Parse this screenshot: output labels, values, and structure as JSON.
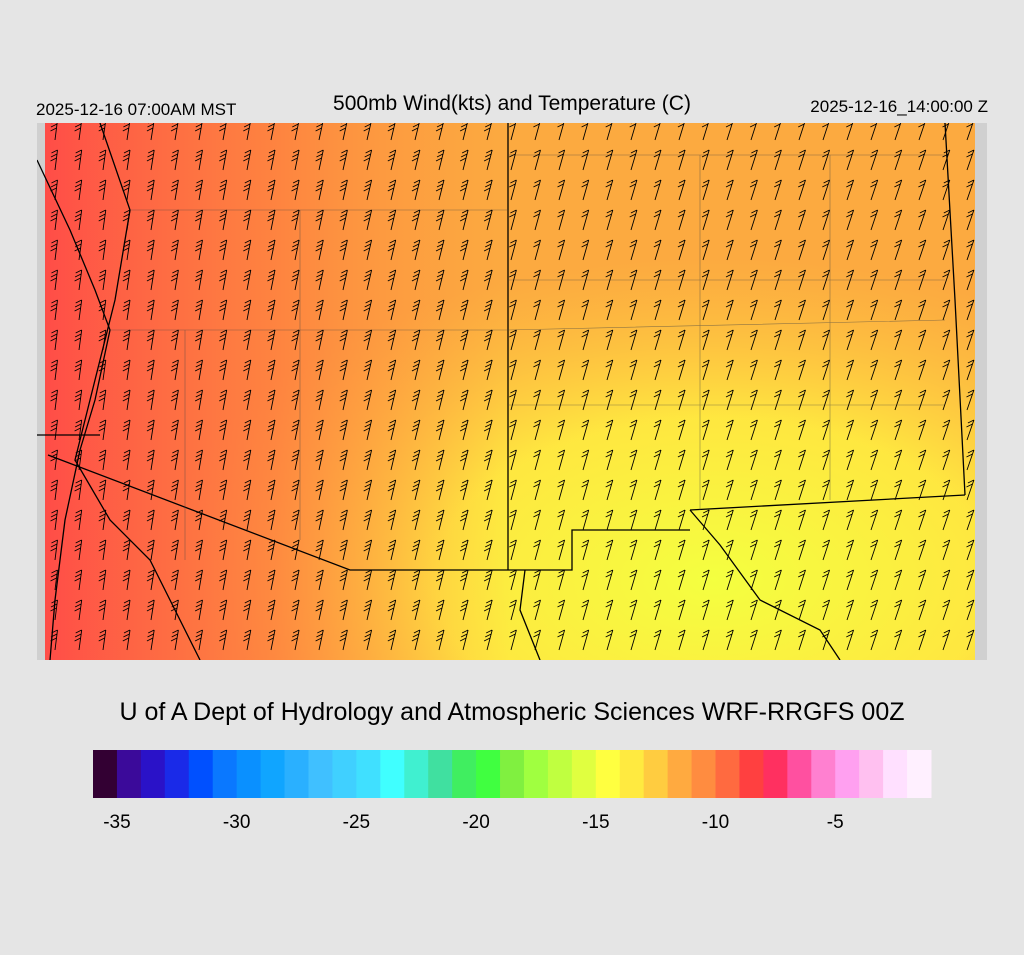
{
  "header": {
    "title": "500mb Wind(kts) and Temperature (C)",
    "local_time": "2025-12-16 07:00AM MST",
    "valid_time": "2025-12-16_14:00:00 Z"
  },
  "credit": "U of A Dept of Hydrology and Atmospheric Sciences WRF-RRGFS 00Z",
  "colorbar": {
    "lim": [
      -36,
      -1
    ],
    "ticks": [
      -35,
      -30,
      -25,
      -20,
      -15,
      -10,
      -5
    ],
    "colors": [
      "#330033",
      "#3b0a9a",
      "#2a12c8",
      "#1a2ae8",
      "#0050ff",
      "#0a78ff",
      "#0a90ff",
      "#10a5ff",
      "#2ab0ff",
      "#40c0ff",
      "#40d0ff",
      "#40e0ff",
      "#40ffff",
      "#40f0d0",
      "#40e0a0",
      "#40ee60",
      "#40ff40",
      "#80f040",
      "#a0ff40",
      "#c0ff40",
      "#e0ff40",
      "#ffff40",
      "#ffea40",
      "#ffcc40",
      "#ffaa40",
      "#ff8c40",
      "#ff6a40",
      "#ff4040",
      "#ff3060",
      "#ff50a0",
      "#ff80d0",
      "#ffa0f0",
      "#ffc0f0",
      "#ffe0ff",
      "#fff0ff"
    ]
  }
}
